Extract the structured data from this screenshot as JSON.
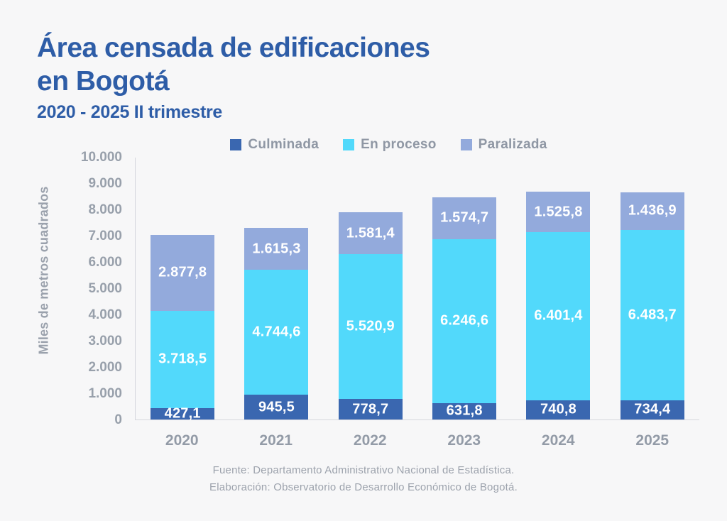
{
  "header": {
    "title_line1": "Área censada de edificaciones",
    "title_line2": "en Bogotá",
    "subtitle": "2020 - 2025 II trimestre"
  },
  "chart_data": {
    "type": "bar",
    "stacked": true,
    "title": "Área censada de edificaciones en Bogotá",
    "subtitle": "2020 - 2025 II trimestre",
    "categories": [
      "2020",
      "2021",
      "2022",
      "2023",
      "2024",
      "2025"
    ],
    "series": [
      {
        "name": "Culminada",
        "color": "#3A67B0",
        "values": [
          427.1,
          945.5,
          778.7,
          631.8,
          740.8,
          734.4
        ],
        "value_labels": [
          "427,1",
          "945,5",
          "778,7",
          "631,8",
          "740,8",
          "734,4"
        ]
      },
      {
        "name": "En proceso",
        "color": "#52D9FB",
        "values": [
          3718.5,
          4744.6,
          5520.9,
          6246.6,
          6401.4,
          6483.7
        ],
        "value_labels": [
          "3.718,5",
          "4.744,6",
          "5.520,9",
          "6.246,6",
          "6.401,4",
          "6.483,7"
        ]
      },
      {
        "name": "Paralizada",
        "color": "#93AADC",
        "values": [
          2877.8,
          1615.3,
          1581.4,
          1574.7,
          1525.8,
          1436.9
        ],
        "value_labels": [
          "2.877,8",
          "1.615,3",
          "1.581,4",
          "1.574,7",
          "1.525,8",
          "1.436,9"
        ]
      }
    ],
    "xlabel": "",
    "ylabel": "Miles de metros cuadrados",
    "ylim": [
      0,
      10000
    ],
    "y_ticks": {
      "values": [
        0,
        1000,
        2000,
        3000,
        4000,
        5000,
        6000,
        7000,
        8000,
        9000,
        10000
      ],
      "labels": [
        "0",
        "1.000",
        "2.000",
        "3.000",
        "4.000",
        "5.000",
        "6.000",
        "7.000",
        "8.000",
        "9.000",
        "10.000"
      ]
    },
    "legend_position": "top",
    "grid": false,
    "stack_order_bottom_to_top": [
      "Culminada",
      "En proceso",
      "Paralizada"
    ]
  },
  "footer": {
    "source": "Fuente: Departamento Administrativo Nacional de Estadística.",
    "elaboration": "Elaboración: Observatorio de Desarrollo Económico de Bogotá."
  },
  "colors": {
    "background": "#F7F7F8",
    "title_text": "#2E5DA7",
    "axis_text": "#98A0AB",
    "axis_line": "#D5D7DD",
    "bar_value_text": "#FFFFFF"
  }
}
